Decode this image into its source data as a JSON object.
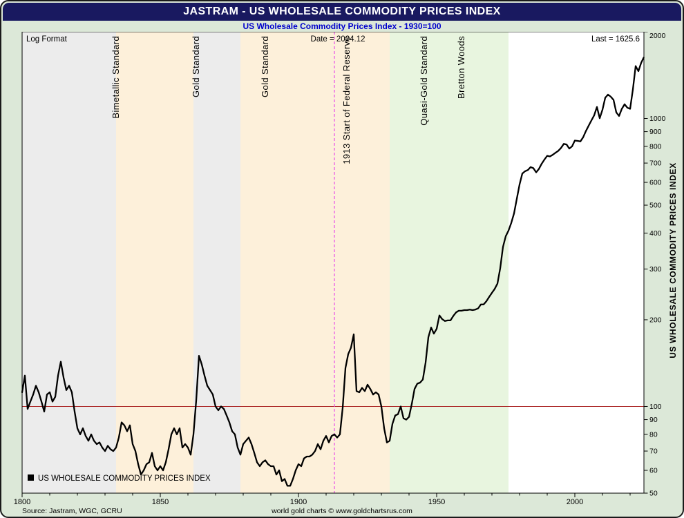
{
  "window": {
    "title": "JASTRAM - US WHOLESALE COMMODITY PRICES INDEX",
    "subtitle": "US Wholesale Commodity Prices Index - 1930=100"
  },
  "plot": {
    "log_format": "Log Format",
    "date_label": "Date = 2024.12",
    "last_label": "Last = 1625.6",
    "legend": "US WHOLESALE COMMODITY PRICES INDEX",
    "right_axis_title": "US WHOLESALE COMMODITY PRICES INDEX"
  },
  "footer": {
    "source": "Source: Jastram, WGC, GCRU",
    "credit": "world gold charts © www.goldchartsrus.com"
  },
  "colors": {
    "titlebar_bg": "#191960",
    "accent_blue": "#0000cc",
    "annotation_red": "#ee1100",
    "series_line": "#000000",
    "hline_red": "#aa2222",
    "vline_magenta": "#e94ee9",
    "band_grey": "#ececec",
    "band_peach": "#fdf0da",
    "band_green": "#e8f5df",
    "page_bg": "#dce8d8"
  },
  "chart_data": {
    "type": "line",
    "title": "US Wholesale Commodity Prices Index - 1930=100",
    "x_range": [
      1800,
      2025
    ],
    "y_range": [
      50,
      2000
    ],
    "y_scale": "log",
    "grid": false,
    "legend_position": "bottom-left",
    "x_ticks_labeled": [
      1800,
      1850,
      1900,
      1950,
      2000
    ],
    "y_ticks_labeled": [
      2000,
      1000,
      900,
      800,
      700,
      600,
      500,
      400,
      300,
      200,
      100,
      90,
      80,
      70,
      60,
      50
    ],
    "reference_hline": {
      "value": 100,
      "color": "#aa2222"
    },
    "reference_vline": {
      "year": 1913,
      "color": "#e94ee9",
      "style": "dashed"
    },
    "bands": [
      {
        "from": 1800,
        "to": 1834,
        "color": "#ececec"
      },
      {
        "from": 1834,
        "to": 1862,
        "color": "#fdf0da"
      },
      {
        "from": 1862,
        "to": 1879,
        "color": "#ececec"
      },
      {
        "from": 1879,
        "to": 1933,
        "color": "#fdf0da"
      },
      {
        "from": 1933,
        "to": 1976,
        "color": "#e8f5df"
      }
    ],
    "annotations": [
      {
        "text": "Bimetallic Standard",
        "year": 1835,
        "color": "#0000cc"
      },
      {
        "text": "Gold Standard",
        "year": 1864,
        "color": "#0000cc"
      },
      {
        "text": "Gold Standard",
        "year": 1889,
        "color": "#0000cc"
      },
      {
        "text": "1913 Start of Federal Reserve",
        "year": 1918.5,
        "color": "#ee1100"
      },
      {
        "text": "Quasi-Gold Standard",
        "year": 1946.5,
        "color": "#0000cc"
      },
      {
        "text": "Bretton Woods",
        "year": 1960,
        "color": "#0000cc"
      }
    ],
    "last_date": "2024.12",
    "last_value": 1625.6,
    "series": [
      {
        "name": "US WHOLESALE COMMODITY PRICES INDEX",
        "points": [
          [
            1800,
            112
          ],
          [
            1801,
            128
          ],
          [
            1802,
            98
          ],
          [
            1803,
            104
          ],
          [
            1804,
            110
          ],
          [
            1805,
            118
          ],
          [
            1806,
            112
          ],
          [
            1807,
            104
          ],
          [
            1808,
            96
          ],
          [
            1809,
            110
          ],
          [
            1810,
            112
          ],
          [
            1811,
            104
          ],
          [
            1812,
            108
          ],
          [
            1813,
            128
          ],
          [
            1814,
            143
          ],
          [
            1815,
            126
          ],
          [
            1816,
            114
          ],
          [
            1817,
            118
          ],
          [
            1818,
            112
          ],
          [
            1819,
            96
          ],
          [
            1820,
            84
          ],
          [
            1821,
            80
          ],
          [
            1822,
            84
          ],
          [
            1823,
            79
          ],
          [
            1824,
            76
          ],
          [
            1825,
            80
          ],
          [
            1826,
            76
          ],
          [
            1827,
            74
          ],
          [
            1828,
            75
          ],
          [
            1829,
            72
          ],
          [
            1830,
            70
          ],
          [
            1831,
            73
          ],
          [
            1832,
            71
          ],
          [
            1833,
            70
          ],
          [
            1834,
            72
          ],
          [
            1835,
            78
          ],
          [
            1836,
            88
          ],
          [
            1837,
            86
          ],
          [
            1838,
            82
          ],
          [
            1839,
            86
          ],
          [
            1840,
            74
          ],
          [
            1841,
            70
          ],
          [
            1842,
            63
          ],
          [
            1843,
            58
          ],
          [
            1844,
            60
          ],
          [
            1845,
            63
          ],
          [
            1846,
            64
          ],
          [
            1847,
            69
          ],
          [
            1848,
            62
          ],
          [
            1849,
            60
          ],
          [
            1850,
            62
          ],
          [
            1851,
            60
          ],
          [
            1852,
            64
          ],
          [
            1853,
            71
          ],
          [
            1854,
            80
          ],
          [
            1855,
            84
          ],
          [
            1856,
            80
          ],
          [
            1857,
            84
          ],
          [
            1858,
            72
          ],
          [
            1859,
            74
          ],
          [
            1860,
            72
          ],
          [
            1861,
            68
          ],
          [
            1862,
            80
          ],
          [
            1863,
            105
          ],
          [
            1864,
            150
          ],
          [
            1865,
            140
          ],
          [
            1866,
            128
          ],
          [
            1867,
            118
          ],
          [
            1868,
            114
          ],
          [
            1869,
            110
          ],
          [
            1870,
            100
          ],
          [
            1871,
            97
          ],
          [
            1872,
            100
          ],
          [
            1873,
            98
          ],
          [
            1874,
            93
          ],
          [
            1875,
            88
          ],
          [
            1876,
            82
          ],
          [
            1877,
            80
          ],
          [
            1878,
            72
          ],
          [
            1879,
            68
          ],
          [
            1880,
            74
          ],
          [
            1881,
            76
          ],
          [
            1882,
            78
          ],
          [
            1883,
            74
          ],
          [
            1884,
            69
          ],
          [
            1885,
            64
          ],
          [
            1886,
            62
          ],
          [
            1887,
            64
          ],
          [
            1888,
            65
          ],
          [
            1889,
            63
          ],
          [
            1890,
            62
          ],
          [
            1891,
            62
          ],
          [
            1892,
            58
          ],
          [
            1893,
            60
          ],
          [
            1894,
            55
          ],
          [
            1895,
            56
          ],
          [
            1896,
            53
          ],
          [
            1897,
            53
          ],
          [
            1898,
            56
          ],
          [
            1899,
            60
          ],
          [
            1900,
            63
          ],
          [
            1901,
            62
          ],
          [
            1902,
            66
          ],
          [
            1903,
            67
          ],
          [
            1904,
            67
          ],
          [
            1905,
            68
          ],
          [
            1906,
            70
          ],
          [
            1907,
            74
          ],
          [
            1908,
            71
          ],
          [
            1909,
            76
          ],
          [
            1910,
            79
          ],
          [
            1911,
            75
          ],
          [
            1912,
            79
          ],
          [
            1913,
            80
          ],
          [
            1914,
            78
          ],
          [
            1915,
            80
          ],
          [
            1916,
            99
          ],
          [
            1917,
            136
          ],
          [
            1918,
            152
          ],
          [
            1919,
            160
          ],
          [
            1920,
            178
          ],
          [
            1921,
            113
          ],
          [
            1922,
            112
          ],
          [
            1923,
            116
          ],
          [
            1924,
            113
          ],
          [
            1925,
            119
          ],
          [
            1926,
            115
          ],
          [
            1927,
            110
          ],
          [
            1928,
            112
          ],
          [
            1929,
            110
          ],
          [
            1930,
            100
          ],
          [
            1931,
            84
          ],
          [
            1932,
            75
          ],
          [
            1933,
            76
          ],
          [
            1934,
            87
          ],
          [
            1935,
            93
          ],
          [
            1936,
            94
          ],
          [
            1937,
            100
          ],
          [
            1938,
            91
          ],
          [
            1939,
            90
          ],
          [
            1940,
            92
          ],
          [
            1941,
            102
          ],
          [
            1942,
            115
          ],
          [
            1943,
            120
          ],
          [
            1944,
            121
          ],
          [
            1945,
            124
          ],
          [
            1946,
            142
          ],
          [
            1947,
            174
          ],
          [
            1948,
            188
          ],
          [
            1949,
            179
          ],
          [
            1950,
            186
          ],
          [
            1951,
            207
          ],
          [
            1952,
            201
          ],
          [
            1953,
            198
          ],
          [
            1954,
            199
          ],
          [
            1955,
            199
          ],
          [
            1956,
            206
          ],
          [
            1957,
            212
          ],
          [
            1958,
            215
          ],
          [
            1959,
            215
          ],
          [
            1960,
            216
          ],
          [
            1961,
            216
          ],
          [
            1962,
            217
          ],
          [
            1963,
            216
          ],
          [
            1964,
            217
          ],
          [
            1965,
            219
          ],
          [
            1966,
            226
          ],
          [
            1967,
            226
          ],
          [
            1968,
            232
          ],
          [
            1969,
            240
          ],
          [
            1970,
            248
          ],
          [
            1971,
            256
          ],
          [
            1972,
            267
          ],
          [
            1973,
            302
          ],
          [
            1974,
            358
          ],
          [
            1975,
            390
          ],
          [
            1976,
            408
          ],
          [
            1977,
            434
          ],
          [
            1978,
            468
          ],
          [
            1979,
            526
          ],
          [
            1980,
            590
          ],
          [
            1981,
            644
          ],
          [
            1982,
            656
          ],
          [
            1983,
            662
          ],
          [
            1984,
            678
          ],
          [
            1985,
            672
          ],
          [
            1986,
            650
          ],
          [
            1987,
            668
          ],
          [
            1988,
            696
          ],
          [
            1989,
            720
          ],
          [
            1990,
            742
          ],
          [
            1991,
            738
          ],
          [
            1992,
            748
          ],
          [
            1993,
            760
          ],
          [
            1994,
            772
          ],
          [
            1995,
            790
          ],
          [
            1996,
            816
          ],
          [
            1997,
            812
          ],
          [
            1998,
            786
          ],
          [
            1999,
            800
          ],
          [
            2000,
            838
          ],
          [
            2001,
            836
          ],
          [
            2002,
            832
          ],
          [
            2003,
            860
          ],
          [
            2004,
            904
          ],
          [
            2005,
            944
          ],
          [
            2006,
            984
          ],
          [
            2007,
            1026
          ],
          [
            2008,
            1096
          ],
          [
            2009,
            1002
          ],
          [
            2010,
            1072
          ],
          [
            2011,
            1180
          ],
          [
            2012,
            1210
          ],
          [
            2013,
            1190
          ],
          [
            2014,
            1160
          ],
          [
            2015,
            1050
          ],
          [
            2016,
            1020
          ],
          [
            2017,
            1080
          ],
          [
            2018,
            1120
          ],
          [
            2019,
            1090
          ],
          [
            2020,
            1080
          ],
          [
            2021,
            1260
          ],
          [
            2022,
            1520
          ],
          [
            2023,
            1460
          ],
          [
            2024,
            1560
          ],
          [
            2024.9,
            1625.6
          ]
        ]
      }
    ]
  }
}
